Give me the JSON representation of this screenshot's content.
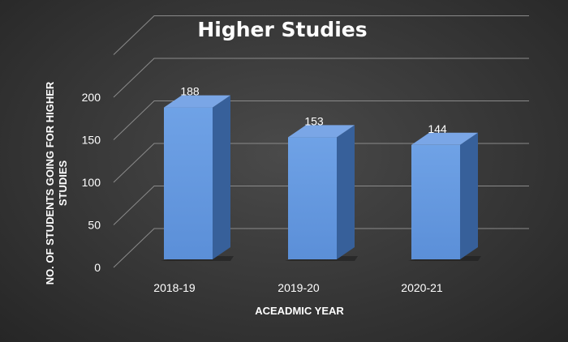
{
  "chart_data": {
    "type": "bar",
    "title": "Higher Studies",
    "xlabel": "ACEADMIC YEAR",
    "ylabel": "NO. OF STUDENTS GOING FOR HIGHER STUDIES",
    "ylabel_lines": [
      "NO. OF STUDENTS GOING FOR HIGHER",
      "STUDIES"
    ],
    "categories": [
      "2018-19",
      "2019-20",
      "2020-21"
    ],
    "values": [
      188,
      153,
      144
    ],
    "data_labels": [
      "188",
      "153",
      "144"
    ],
    "ylim": [
      0,
      250
    ],
    "yticks": [
      0,
      50,
      100,
      150,
      200
    ],
    "grid": true,
    "three_d": true,
    "bar_color": "#5b8fd8",
    "bar_side_color": "#37609a",
    "bar_top_color": "#7aa6e6"
  }
}
